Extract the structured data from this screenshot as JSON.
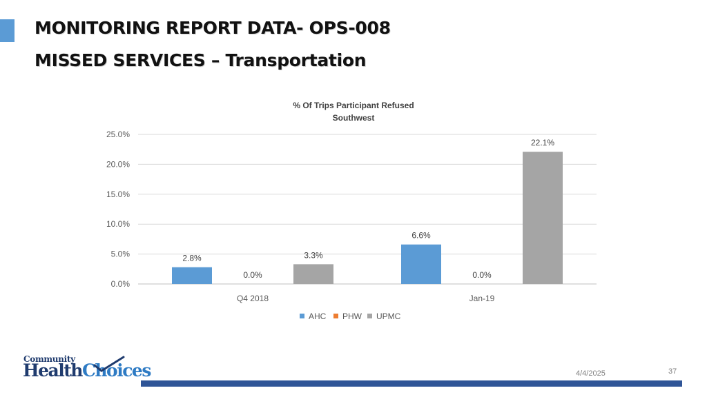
{
  "slide": {
    "title_line1": "MONITORING REPORT DATA- OPS-008",
    "title_line2": "MISSED SERVICES – Transportation",
    "accent_color": "#5b9bd5",
    "date": "4/4/2025",
    "page_number": "37",
    "logo": {
      "text_top": "Community",
      "text_main_1": "Health",
      "text_main_2": "Choices",
      "icon": "checkmark-swoosh-icon"
    }
  },
  "chart_data": {
    "type": "bar",
    "title": "% Of Trips Participant Refused",
    "subtitle": "Southwest",
    "categories": [
      "Q4 2018",
      "Jan-19"
    ],
    "series": [
      {
        "name": "AHC",
        "values": [
          2.8,
          6.6
        ],
        "labels": [
          "2.8%",
          "6.6%"
        ],
        "color": "#5b9bd5"
      },
      {
        "name": "PHW",
        "values": [
          0.0,
          0.0
        ],
        "labels": [
          "0.0%",
          "0.0%"
        ],
        "color": "#ed7d31"
      },
      {
        "name": "UPMC",
        "values": [
          3.3,
          22.1
        ],
        "labels": [
          "3.3%",
          "22.1%"
        ],
        "color": "#a5a5a5"
      }
    ],
    "yticks": [
      "0.0%",
      "5.0%",
      "10.0%",
      "15.0%",
      "20.0%",
      "25.0%"
    ],
    "ylim": [
      0,
      25
    ],
    "grid": true,
    "legend": "bottom"
  }
}
